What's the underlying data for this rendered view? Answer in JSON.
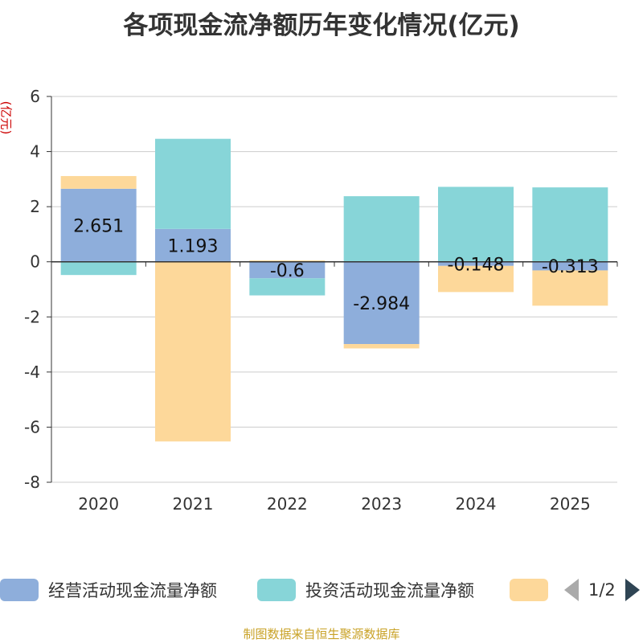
{
  "chart_data": {
    "type": "bar",
    "stacked": true,
    "title": "各项现金流净额历年变化情况(亿元)",
    "ylabel": "(亿元)",
    "xlabel": "",
    "categories": [
      "2020",
      "2021",
      "2022",
      "2023",
      "2024",
      "2025"
    ],
    "ylim": [
      -8,
      6
    ],
    "yticks": [
      6,
      4,
      2,
      0,
      -2,
      -4,
      -6,
      -8
    ],
    "series": [
      {
        "name": "经营活动现金流量净额",
        "color": "#8eaedb",
        "values": [
          2.651,
          1.193,
          -0.6,
          -2.984,
          -0.148,
          -0.313
        ],
        "labels": [
          "2.651",
          "1.193",
          "-0.6",
          "-2.984",
          "-0.148",
          "-0.313"
        ]
      },
      {
        "name": "投资活动现金流量净额",
        "color": "#87d5d8",
        "values": [
          -0.48,
          3.27,
          -0.62,
          2.38,
          2.72,
          2.7
        ]
      },
      {
        "name": "",
        "color": "#fdd89a",
        "values": [
          0.46,
          -6.52,
          0.05,
          -0.16,
          -0.95,
          -1.28
        ]
      }
    ]
  },
  "legend": {
    "items": [
      {
        "label": "经营活动现金流量净额",
        "color": "#8eaedb"
      },
      {
        "label": "投资活动现金流量净额",
        "color": "#87d5d8"
      },
      {
        "label": "",
        "color": "#fdd89a"
      }
    ],
    "page": "1/2"
  },
  "source": "制图数据来自恒生聚源数据库"
}
